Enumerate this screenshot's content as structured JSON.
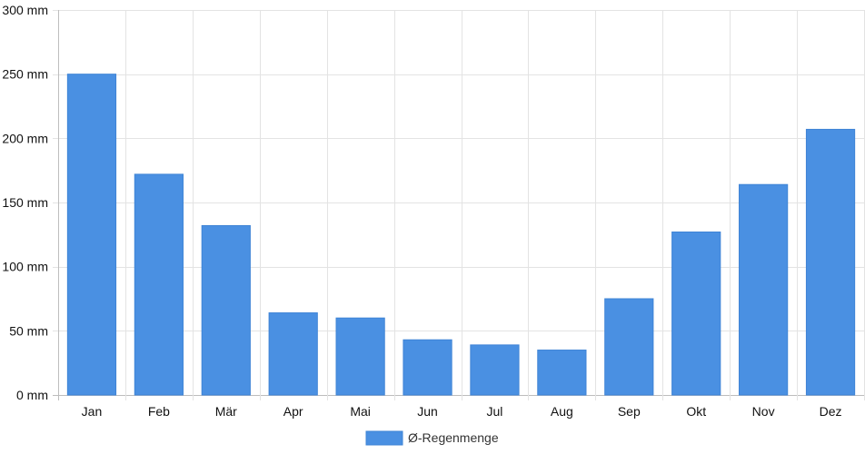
{
  "chart_data": {
    "type": "bar",
    "categories": [
      "Jan",
      "Feb",
      "Mär",
      "Apr",
      "Mai",
      "Jun",
      "Jul",
      "Aug",
      "Sep",
      "Okt",
      "Nov",
      "Dez"
    ],
    "series": [
      {
        "name": "Ø-Regenmenge",
        "values": [
          250,
          172,
          132,
          64,
          60,
          43,
          39,
          35,
          75,
          127,
          164,
          207
        ],
        "color": "#4a90e2"
      }
    ],
    "y_unit": "mm",
    "ylim": [
      0,
      300
    ],
    "y_ticks": [
      0,
      50,
      100,
      150,
      200,
      250,
      300
    ],
    "y_tick_labels": [
      "0 mm",
      "50 mm",
      "100 mm",
      "150 mm",
      "200 mm",
      "250 mm",
      "300 mm"
    ],
    "grid": true,
    "legend_position": "bottom-center"
  }
}
